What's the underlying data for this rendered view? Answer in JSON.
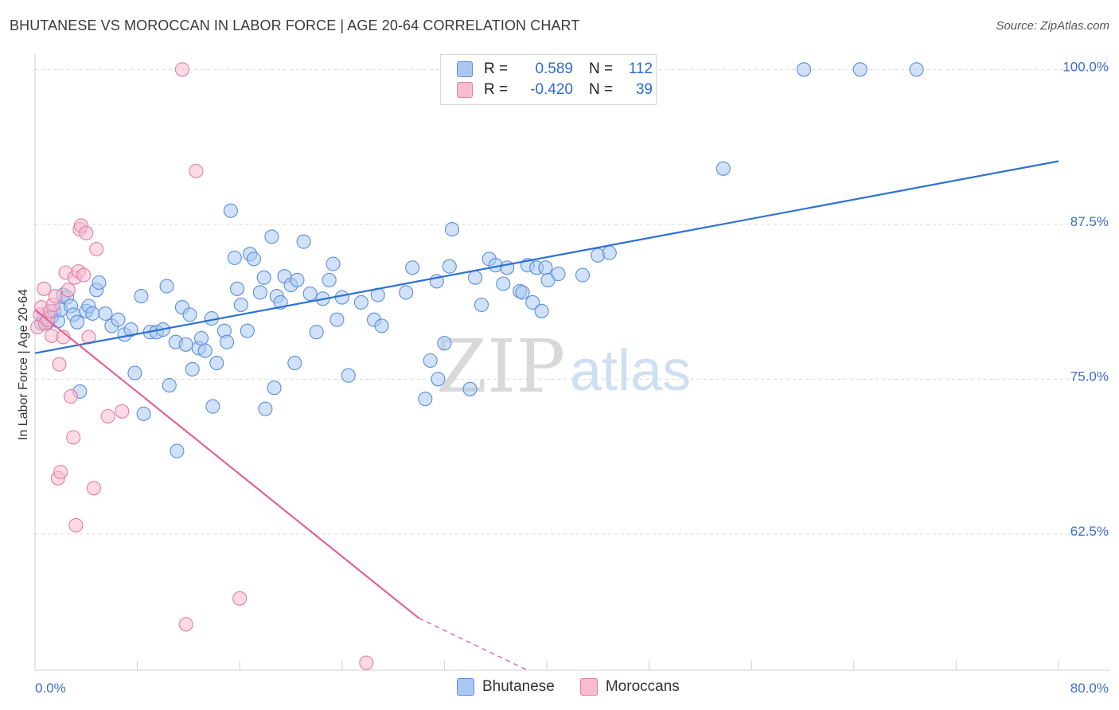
{
  "header": {
    "title": "BHUTANESE VS MOROCCAN IN LABOR FORCE | AGE 20-64 CORRELATION CHART",
    "source": "Source: ZipAtlas.com"
  },
  "watermark": {
    "zip": "ZIP",
    "atlas": "atlas"
  },
  "legend": {
    "rows": [
      {
        "r_label": "R =",
        "r_value": "0.589",
        "n_label": "N =",
        "n_value": "112",
        "color": "#aac8f2",
        "border": "#5b8fd8"
      },
      {
        "r_label": "R =",
        "r_value": "-0.420",
        "n_label": "N =",
        "n_value": "39",
        "color": "#f7bcd0",
        "border": "#e07fa2"
      }
    ]
  },
  "bottom_legend": {
    "series1": "Bhutanese",
    "series2": "Moroccans"
  },
  "chart_data": {
    "type": "scatter",
    "title": "BHUTANESE VS MOROCCAN IN LABOR FORCE | AGE 20-64 CORRELATION CHART",
    "xlabel": "",
    "ylabel": "In Labor Force | Age 20-64",
    "xlim": [
      0,
      80
    ],
    "ylim": [
      51.5,
      101.5
    ],
    "x_tick_labels": [
      "0.0%",
      "80.0%"
    ],
    "y_ticks": [
      62.5,
      75.0,
      87.5,
      100.0
    ],
    "y_tick_labels": [
      "62.5%",
      "75.0%",
      "87.5%",
      "100.0%"
    ],
    "grid": true,
    "legend_position": "top-center",
    "series": [
      {
        "name": "Bhutanese",
        "color": "#5b8fd8",
        "fill": "#aac8f2",
        "trend": {
          "x": [
            0,
            80
          ],
          "y": [
            77.1,
            92.6
          ]
        },
        "points": [
          [
            0.5,
            79.5
          ],
          [
            0.7,
            80.0
          ],
          [
            1.0,
            79.6
          ],
          [
            1.3,
            80.0
          ],
          [
            1.5,
            80.5
          ],
          [
            1.8,
            79.7
          ],
          [
            2.0,
            80.6
          ],
          [
            2.2,
            81.8
          ],
          [
            2.5,
            81.6
          ],
          [
            2.8,
            80.9
          ],
          [
            3.0,
            80.2
          ],
          [
            3.3,
            79.6
          ],
          [
            3.5,
            74.0
          ],
          [
            4.0,
            80.5
          ],
          [
            4.2,
            80.9
          ],
          [
            4.5,
            80.3
          ],
          [
            4.8,
            82.2
          ],
          [
            5.0,
            82.8
          ],
          [
            5.5,
            80.3
          ],
          [
            6.0,
            79.3
          ],
          [
            6.5,
            79.8
          ],
          [
            7.0,
            78.6
          ],
          [
            7.5,
            79.0
          ],
          [
            7.8,
            75.5
          ],
          [
            8.3,
            81.7
          ],
          [
            8.5,
            72.2
          ],
          [
            9.0,
            78.8
          ],
          [
            9.5,
            78.8
          ],
          [
            10.0,
            79.0
          ],
          [
            10.3,
            82.5
          ],
          [
            10.5,
            74.5
          ],
          [
            11.0,
            78.0
          ],
          [
            11.1,
            69.2
          ],
          [
            11.5,
            80.8
          ],
          [
            11.8,
            77.8
          ],
          [
            12.1,
            80.2
          ],
          [
            12.3,
            75.8
          ],
          [
            12.8,
            77.5
          ],
          [
            13.0,
            78.3
          ],
          [
            13.3,
            77.3
          ],
          [
            13.8,
            79.9
          ],
          [
            13.9,
            72.8
          ],
          [
            14.2,
            76.3
          ],
          [
            14.8,
            78.9
          ],
          [
            15.0,
            78.0
          ],
          [
            15.3,
            88.6
          ],
          [
            15.6,
            84.8
          ],
          [
            15.8,
            82.3
          ],
          [
            16.1,
            81.0
          ],
          [
            16.6,
            78.9
          ],
          [
            16.8,
            85.1
          ],
          [
            17.1,
            84.7
          ],
          [
            17.6,
            82.0
          ],
          [
            17.9,
            83.2
          ],
          [
            18.0,
            72.6
          ],
          [
            18.5,
            86.5
          ],
          [
            18.7,
            74.3
          ],
          [
            18.9,
            81.7
          ],
          [
            19.2,
            81.2
          ],
          [
            19.5,
            83.3
          ],
          [
            20.0,
            82.6
          ],
          [
            20.3,
            76.3
          ],
          [
            20.5,
            83.0
          ],
          [
            21.0,
            86.1
          ],
          [
            21.5,
            81.9
          ],
          [
            22.0,
            78.8
          ],
          [
            22.5,
            81.5
          ],
          [
            23.0,
            83.0
          ],
          [
            23.3,
            84.3
          ],
          [
            23.6,
            79.8
          ],
          [
            24.0,
            81.6
          ],
          [
            24.5,
            75.3
          ],
          [
            25.5,
            81.2
          ],
          [
            26.5,
            79.8
          ],
          [
            26.8,
            81.8
          ],
          [
            27.1,
            79.3
          ],
          [
            29.0,
            82.0
          ],
          [
            29.5,
            84.0
          ],
          [
            30.5,
            73.4
          ],
          [
            30.9,
            76.5
          ],
          [
            31.4,
            82.9
          ],
          [
            31.5,
            75.0
          ],
          [
            32.0,
            77.9
          ],
          [
            32.4,
            84.1
          ],
          [
            32.6,
            87.1
          ],
          [
            34.0,
            74.2
          ],
          [
            34.4,
            83.2
          ],
          [
            34.9,
            81.0
          ],
          [
            35.5,
            84.7
          ],
          [
            36.0,
            84.2
          ],
          [
            36.6,
            82.7
          ],
          [
            36.9,
            84.0
          ],
          [
            37.9,
            82.1
          ],
          [
            38.1,
            82.0
          ],
          [
            38.5,
            84.2
          ],
          [
            38.9,
            81.2
          ],
          [
            39.2,
            84.0
          ],
          [
            39.6,
            80.5
          ],
          [
            39.9,
            84.0
          ],
          [
            40.1,
            83.0
          ],
          [
            40.9,
            83.5
          ],
          [
            42.8,
            83.4
          ],
          [
            44.0,
            85.0
          ],
          [
            44.9,
            85.2
          ],
          [
            53.8,
            92.0
          ],
          [
            60.1,
            100.0
          ],
          [
            64.5,
            100.0
          ],
          [
            68.9,
            100.0
          ]
        ]
      },
      {
        "name": "Moroccans",
        "color": "#e07fa2",
        "fill": "#f7bcd0",
        "trend": {
          "x": [
            0,
            30
          ],
          "y": [
            80.6,
            55.7
          ]
        },
        "trend_dashed": {
          "x": [
            30,
            38.5
          ],
          "y": [
            55.7,
            51.5
          ]
        },
        "points": [
          [
            0.2,
            79.2
          ],
          [
            0.4,
            80.2
          ],
          [
            0.5,
            80.8
          ],
          [
            0.7,
            82.3
          ],
          [
            0.8,
            79.5
          ],
          [
            1.0,
            79.8
          ],
          [
            1.2,
            80.5
          ],
          [
            1.3,
            78.5
          ],
          [
            1.4,
            81.0
          ],
          [
            1.6,
            81.7
          ],
          [
            1.8,
            67.0
          ],
          [
            1.9,
            76.2
          ],
          [
            2.0,
            67.5
          ],
          [
            2.2,
            78.4
          ],
          [
            2.4,
            83.6
          ],
          [
            2.6,
            82.2
          ],
          [
            2.8,
            73.6
          ],
          [
            3.0,
            70.3
          ],
          [
            3.1,
            83.2
          ],
          [
            3.2,
            63.2
          ],
          [
            3.4,
            83.7
          ],
          [
            3.5,
            87.1
          ],
          [
            3.6,
            87.4
          ],
          [
            3.8,
            83.4
          ],
          [
            4.0,
            86.8
          ],
          [
            4.2,
            78.4
          ],
          [
            4.6,
            66.2
          ],
          [
            4.8,
            85.5
          ],
          [
            5.7,
            72.0
          ],
          [
            6.8,
            72.4
          ],
          [
            11.5,
            100.0
          ],
          [
            11.8,
            55.2
          ],
          [
            12.6,
            91.8
          ],
          [
            16.0,
            57.3
          ],
          [
            25.9,
            52.1
          ]
        ]
      }
    ]
  }
}
